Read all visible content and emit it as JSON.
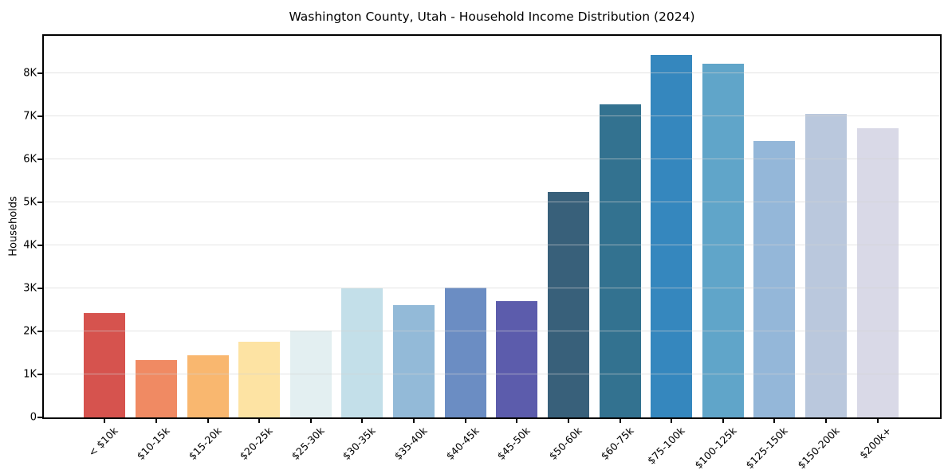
{
  "chart_data": {
    "type": "bar",
    "title": "Washington County, Utah - Household Income Distribution (2024)",
    "xlabel": "",
    "ylabel": "Households",
    "categories": [
      "< $10k",
      "$10-15k",
      "$15-20k",
      "$20-25k",
      "$25-30k",
      "$30-35k",
      "$35-40k",
      "$40-45k",
      "$45-50k",
      "$50-60k",
      "$60-75k",
      "$75-100k",
      "$100-125k",
      "$125-150k",
      "$150-200k",
      "$200k+"
    ],
    "values": [
      2430,
      1340,
      1440,
      1760,
      2020,
      3000,
      2620,
      3020,
      2700,
      5250,
      7280,
      8420,
      8220,
      6420,
      7060,
      6730
    ],
    "bar_colors": [
      "#d6534e",
      "#f08a63",
      "#f9b76f",
      "#fde3a3",
      "#e3eff1",
      "#c3dfe9",
      "#93bad8",
      "#6b8dc3",
      "#5c5cac",
      "#38607a",
      "#337290",
      "#3587be",
      "#60a5c9",
      "#94b7d9",
      "#bac8dd",
      "#d9d9e7"
    ],
    "yticks": {
      "labels": [
        "0",
        "1K",
        "2K",
        "3K",
        "4K",
        "5K",
        "6K",
        "7K",
        "8K"
      ],
      "values": [
        0,
        1000,
        2000,
        3000,
        4000,
        5000,
        6000,
        7000,
        8000
      ]
    },
    "ylim": [
      0,
      8870
    ],
    "grid": "horizontal",
    "legend": "none",
    "x_tick_rotation_deg": 45,
    "colors": {
      "background": "#ffffff",
      "spine": "#000000",
      "gridline": "#e4e4e4",
      "text": "#000000"
    }
  }
}
